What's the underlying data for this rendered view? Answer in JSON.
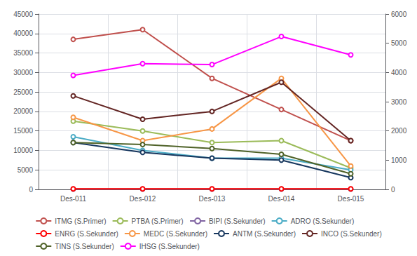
{
  "chart_data": {
    "type": "line",
    "categories": [
      "Des-011",
      "Des-012",
      "Des-013",
      "Des-014",
      "Des-015"
    ],
    "series": [
      {
        "name": "ITMG (S.Primer)",
        "color": "#c0504d",
        "marker": "circle",
        "values": [
          38500,
          41000,
          28500,
          20500,
          12500
        ]
      },
      {
        "name": "PTBA (S.Primer)",
        "color": "#9bbb59",
        "marker": "circle",
        "values": [
          17500,
          15000,
          12000,
          12500,
          5500
        ]
      },
      {
        "name": "BIPI (S.Sekunder)",
        "color": "#8064a2",
        "marker": "circle",
        "values": [
          100,
          100,
          100,
          100,
          100
        ]
      },
      {
        "name": "ADRO (S.Sekunder)",
        "color": "#4bacc6",
        "marker": "circle",
        "values": [
          13500,
          10000,
          8000,
          8000,
          5000
        ]
      },
      {
        "name": "ENRG (S.Sekunder)",
        "color": "#ff0000",
        "marker": "circle",
        "values": [
          150,
          150,
          150,
          150,
          150
        ]
      },
      {
        "name": "MEDC (S.Sekunder)",
        "color": "#f79646",
        "marker": "circle",
        "values": [
          18500,
          12500,
          15500,
          28500,
          6000
        ]
      },
      {
        "name": "ANTM (S.Sekunder)",
        "color": "#17375e",
        "marker": "circle",
        "values": [
          12000,
          9500,
          8000,
          7500,
          3000
        ]
      },
      {
        "name": "INCO (S.Sekunder)",
        "color": "#632523",
        "marker": "circle",
        "values": [
          24000,
          18000,
          20000,
          27500,
          12500
        ]
      },
      {
        "name": "TINS (S.Sekunder)",
        "color": "#4f6228",
        "marker": "circle",
        "values": [
          12000,
          11500,
          10500,
          9000,
          4000
        ]
      },
      {
        "name": "IHSG (S.Sekunder)",
        "color": "#ff00ff",
        "marker": "circle",
        "axis": "y2",
        "values": [
          3900,
          4300,
          4270,
          5230,
          4600
        ]
      }
    ],
    "ylim": [
      0,
      45000
    ],
    "yticks": [
      0,
      5000,
      10000,
      15000,
      20000,
      25000,
      30000,
      35000,
      40000,
      45000
    ],
    "y2lim": [
      0,
      6000
    ],
    "y2ticks": [
      0,
      1000,
      2000,
      3000,
      4000,
      5000,
      6000
    ],
    "grid": true,
    "legend": "bottom"
  }
}
